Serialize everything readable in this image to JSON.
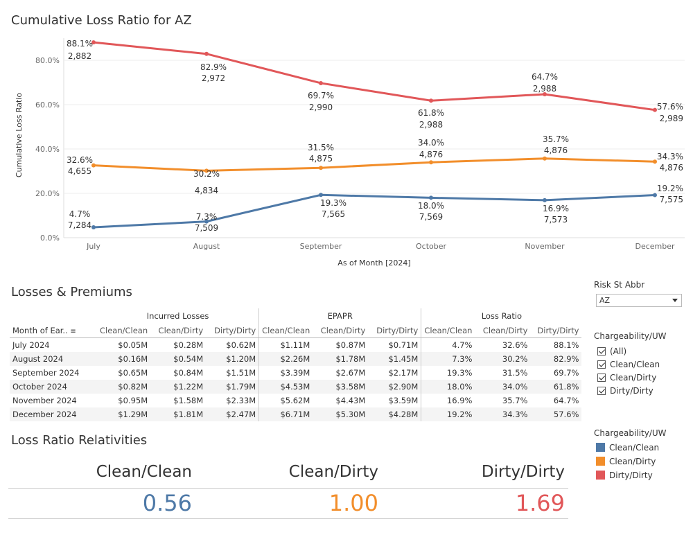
{
  "chart_title": "Cumulative Loss Ratio for AZ",
  "colors": {
    "clean_clean": "#4e79a7",
    "clean_dirty": "#f28e2b",
    "dirty_dirty": "#e15759"
  },
  "chart_data": {
    "type": "line",
    "title": "Cumulative Loss Ratio for AZ",
    "xlabel": "As of Month [2024]",
    "ylabel": "Cumulative Loss Ratio",
    "categories": [
      "July",
      "August",
      "September",
      "October",
      "November",
      "December"
    ],
    "y_ticks": [
      "0.0%",
      "20.0%",
      "40.0%",
      "60.0%",
      "80.0%"
    ],
    "ylim": [
      0,
      90
    ],
    "grid": true,
    "series": [
      {
        "name": "Clean/Clean",
        "values": [
          4.7,
          7.3,
          19.3,
          18.0,
          16.9,
          19.2
        ],
        "labels": [
          "4.7%",
          "7.3%",
          "19.3%",
          "18.0%",
          "16.9%",
          "19.2%"
        ],
        "counts": [
          "7,284",
          "7,509",
          "7,565",
          "7,569",
          "7,573",
          "7,575"
        ]
      },
      {
        "name": "Clean/Dirty",
        "values": [
          32.6,
          30.2,
          31.5,
          34.0,
          35.7,
          34.3
        ],
        "labels": [
          "32.6%",
          "30.2%",
          "31.5%",
          "34.0%",
          "35.7%",
          "34.3%"
        ],
        "counts": [
          "4,655",
          "4,834",
          "4,875",
          "4,876",
          "4,876",
          "4,876"
        ]
      },
      {
        "name": "Dirty/Dirty",
        "values": [
          88.1,
          82.9,
          69.7,
          61.8,
          64.7,
          57.6
        ],
        "labels": [
          "88.1%",
          "82.9%",
          "69.7%",
          "61.8%",
          "64.7%",
          "57.6%"
        ],
        "counts": [
          "2,882",
          "2,972",
          "2,990",
          "2,988",
          "2,988",
          "2,989"
        ]
      }
    ]
  },
  "losses_premiums": {
    "title": "Losses & Premiums",
    "row_header": "Month of Ear..",
    "groups": [
      "Incurred Losses",
      "EPAPR",
      "Loss Ratio"
    ],
    "subcolumns": [
      "Clean/Clean",
      "Clean/Dirty",
      "Dirty/Dirty"
    ],
    "rows": [
      {
        "month": "July 2024",
        "values": [
          "$0.05M",
          "$0.28M",
          "$0.62M",
          "$1.11M",
          "$0.87M",
          "$0.71M",
          "4.7%",
          "32.6%",
          "88.1%"
        ]
      },
      {
        "month": "August 2024",
        "values": [
          "$0.16M",
          "$0.54M",
          "$1.20M",
          "$2.26M",
          "$1.78M",
          "$1.45M",
          "7.3%",
          "30.2%",
          "82.9%"
        ]
      },
      {
        "month": "September 2024",
        "values": [
          "$0.65M",
          "$0.84M",
          "$1.51M",
          "$3.39M",
          "$2.67M",
          "$2.17M",
          "19.3%",
          "31.5%",
          "69.7%"
        ]
      },
      {
        "month": "October 2024",
        "values": [
          "$0.82M",
          "$1.22M",
          "$1.79M",
          "$4.53M",
          "$3.58M",
          "$2.90M",
          "18.0%",
          "34.0%",
          "61.8%"
        ]
      },
      {
        "month": "November 2024",
        "values": [
          "$0.95M",
          "$1.58M",
          "$2.33M",
          "$5.62M",
          "$4.43M",
          "$3.59M",
          "16.9%",
          "35.7%",
          "64.7%"
        ]
      },
      {
        "month": "December 2024",
        "values": [
          "$1.29M",
          "$1.81M",
          "$2.47M",
          "$6.71M",
          "$5.30M",
          "$4.28M",
          "19.2%",
          "34.3%",
          "57.6%"
        ]
      }
    ]
  },
  "relativities": {
    "title": "Loss Ratio Relativities",
    "items": [
      {
        "label": "Clean/Clean",
        "value": "0.56"
      },
      {
        "label": "Clean/Dirty",
        "value": "1.00"
      },
      {
        "label": "Dirty/Dirty",
        "value": "1.69"
      }
    ]
  },
  "filters": {
    "state_label": "Risk St Abbr",
    "state_value": "AZ",
    "chargeability_label": "Chargeability/UW",
    "options": [
      "(All)",
      "Clean/Clean",
      "Clean/Dirty",
      "Dirty/Dirty"
    ]
  },
  "legend": {
    "title": "Chargeability/UW",
    "items": [
      "Clean/Clean",
      "Clean/Dirty",
      "Dirty/Dirty"
    ]
  }
}
